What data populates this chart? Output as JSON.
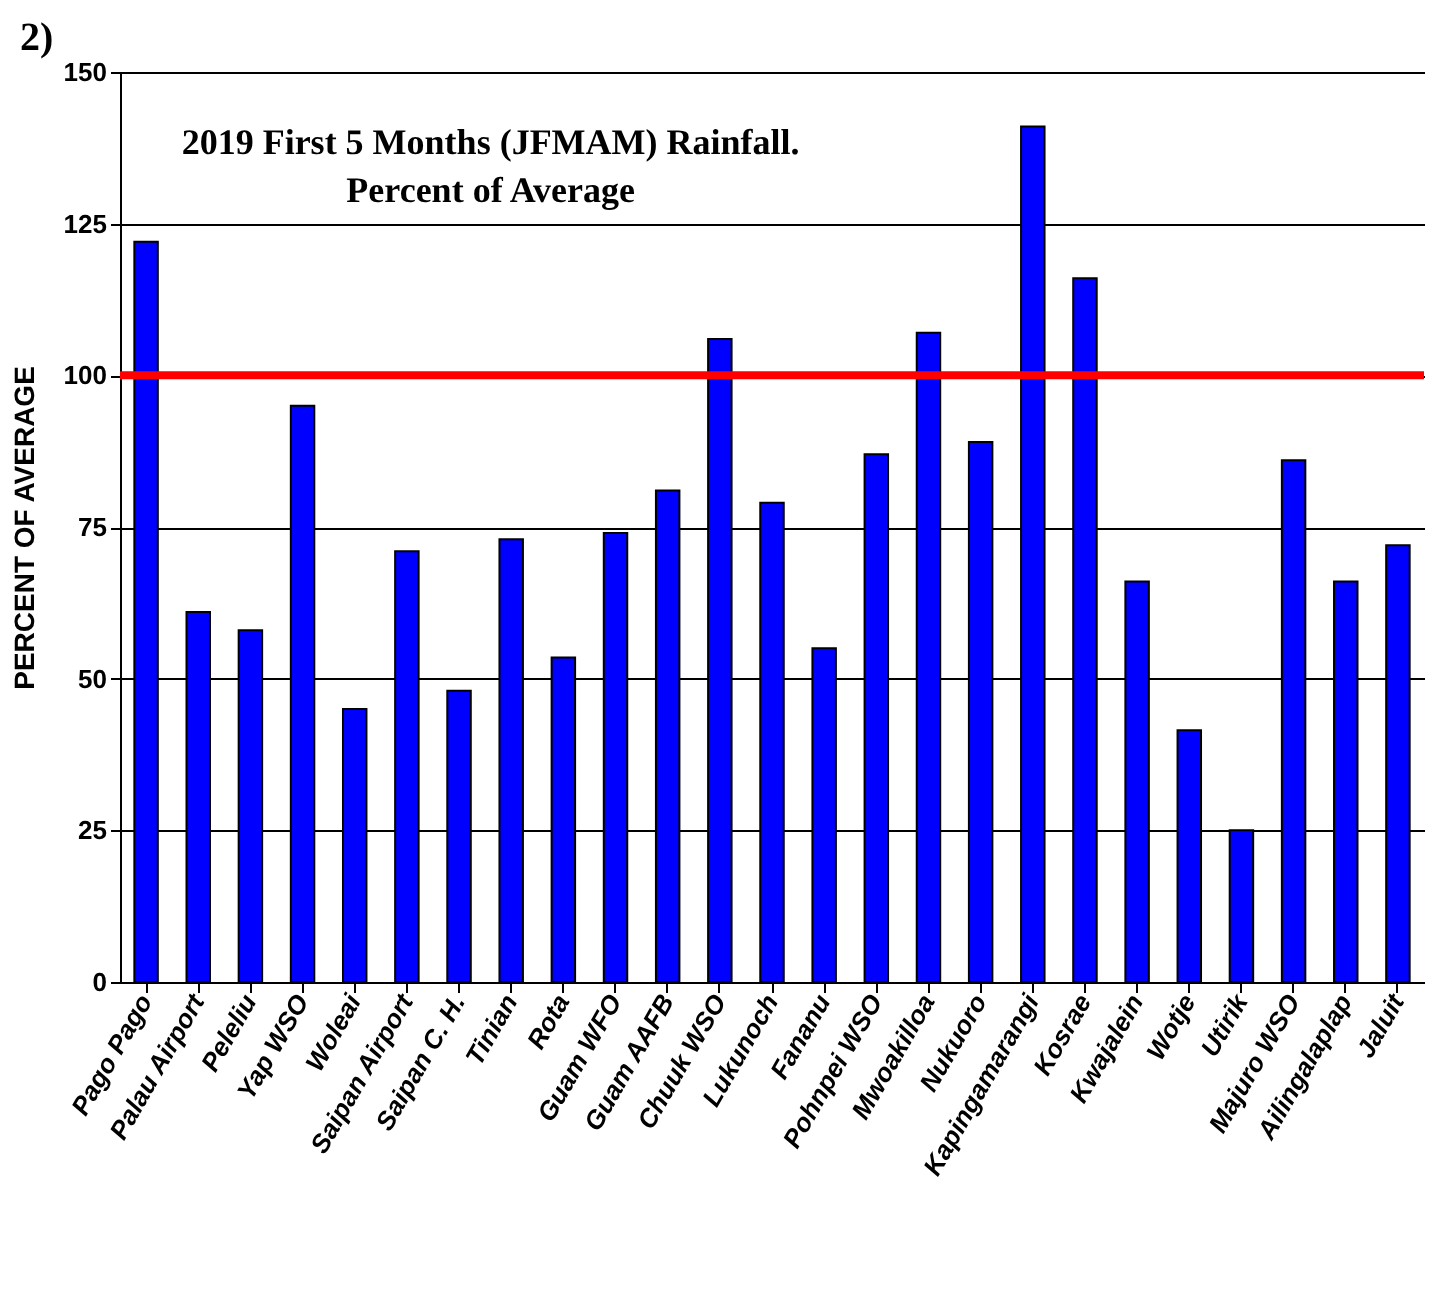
{
  "chart_data": {
    "type": "bar",
    "title": "2019 First 5 Months (JFMAM) Rainfall.",
    "subtitle": "Percent of Average",
    "ylabel": "PERCENT OF AVERAGE",
    "annotations": [
      "2)"
    ],
    "categories": [
      "Pago Pago",
      "Palau Airport",
      "Peleliu",
      "Yap WSO",
      "Woleai",
      "Saipan Airport",
      "Saipan C. H.",
      "Tinian",
      "Rota",
      "Guam WFO",
      "Guam AAFB",
      "Chuuk WSO",
      "Lukunoch",
      "Fananu",
      "Pohnpei WSO",
      "Mwoakilloa",
      "Nukuoro",
      "Kapingamarangi",
      "Kosrae",
      "Kwajalein",
      "Wotje",
      "Utirik",
      "Majuro WSO",
      "Ailingalaplap",
      "Jaluit"
    ],
    "values": [
      122,
      61,
      58,
      95,
      45,
      71,
      48,
      73,
      53.5,
      74,
      81,
      106,
      79,
      55,
      87,
      107,
      89,
      141,
      116,
      66,
      41.5,
      25,
      86,
      66,
      72
    ],
    "color": "#0000ff",
    "ylim": [
      0,
      150
    ],
    "yticks": [
      0,
      25,
      50,
      75,
      100,
      125,
      150
    ],
    "grid": "y",
    "ref_lines": [
      {
        "axis": "y",
        "value": 100,
        "color": "#ff0000"
      }
    ]
  }
}
